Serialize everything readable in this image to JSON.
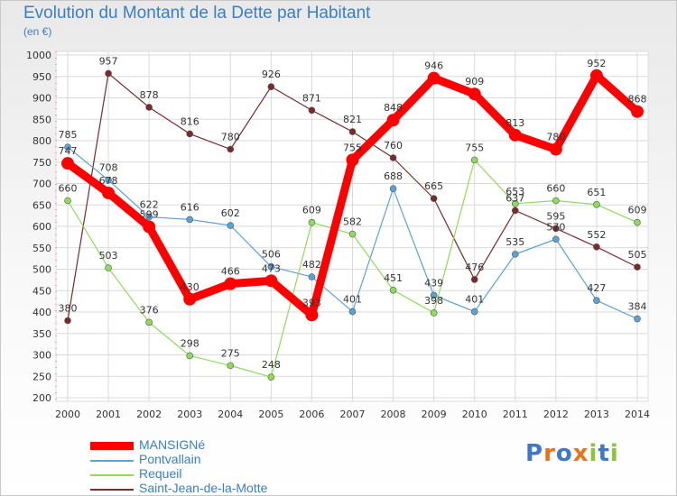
{
  "title": "Evolution du Montant de la Dette par Habitant",
  "unit": "(en €)",
  "logo": {
    "text": "Proxiti",
    "colors": [
      "#3f78c8",
      "#e8731d",
      "#3f78c8",
      "#e8731d",
      "#8cc43c",
      "#3f78c8",
      "#8cc43c"
    ]
  },
  "chart_data": {
    "type": "line",
    "x": [
      2000,
      2001,
      2002,
      2003,
      2004,
      2005,
      2006,
      2007,
      2008,
      2009,
      2010,
      2011,
      2012,
      2013,
      2014
    ],
    "ylim": [
      200,
      1000
    ],
    "yticks": [
      200,
      250,
      300,
      350,
      400,
      450,
      500,
      550,
      600,
      650,
      700,
      750,
      800,
      850,
      900,
      950,
      1000
    ],
    "grid": true,
    "legend_position": "bottom-left",
    "series": [
      {
        "name": "MANSIGNé",
        "color": "#ff0000",
        "width": 9,
        "values": [
          747,
          678,
          599,
          430,
          466,
          473,
          393,
          755,
          848,
          946,
          909,
          813,
          780,
          952,
          868
        ]
      },
      {
        "name": "Pontvallain",
        "color": "#5ba3d6",
        "width": 1.2,
        "values": [
          785,
          708,
          622,
          616,
          602,
          506,
          482,
          401,
          688,
          439,
          401,
          535,
          570,
          427,
          384
        ]
      },
      {
        "name": "Requeil",
        "color": "#8fdb5a",
        "width": 1.2,
        "values": [
          660,
          503,
          376,
          298,
          275,
          248,
          609,
          582,
          451,
          398,
          755,
          653,
          660,
          651,
          609
        ]
      },
      {
        "name": "Saint-Jean-de-la-Motte",
        "color": "#7a2a2a",
        "width": 1.2,
        "values": [
          380,
          957,
          878,
          816,
          780,
          926,
          871,
          821,
          760,
          665,
          476,
          637,
          595,
          552,
          505
        ]
      }
    ]
  }
}
